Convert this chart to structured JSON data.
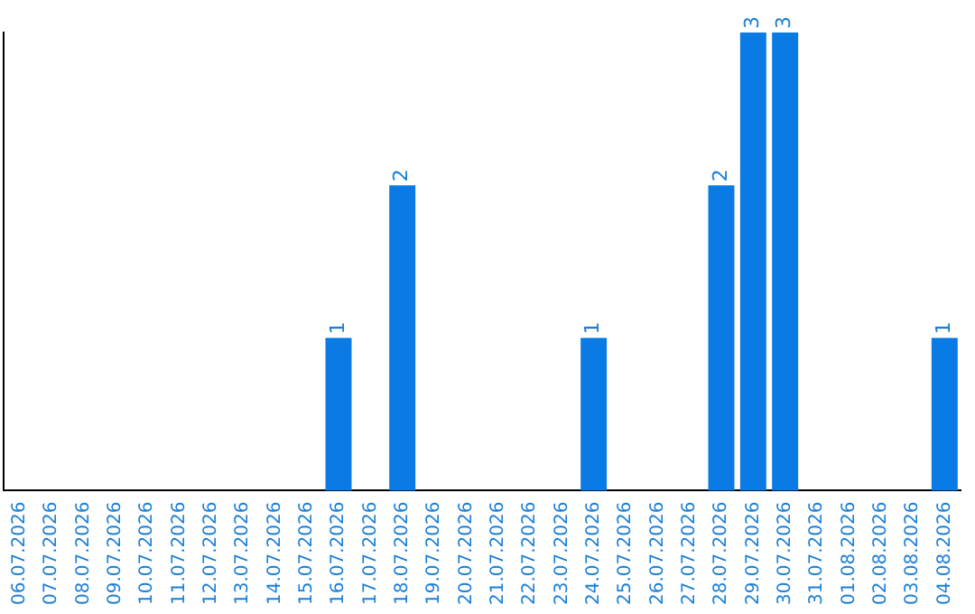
{
  "chart_data": {
    "type": "bar",
    "categories": [
      "06.07.2026",
      "07.07.2026",
      "08.07.2026",
      "09.07.2026",
      "10.07.2026",
      "11.07.2026",
      "12.07.2026",
      "13.07.2026",
      "14.07.2026",
      "15.07.2026",
      "16.07.2026",
      "17.07.2026",
      "18.07.2026",
      "19.07.2026",
      "20.07.2026",
      "21.07.2026",
      "22.07.2026",
      "23.07.2026",
      "24.07.2026",
      "25.07.2026",
      "26.07.2026",
      "27.07.2026",
      "28.07.2026",
      "29.07.2026",
      "30.07.2026",
      "31.07.2026",
      "01.08.2026",
      "02.08.2026",
      "03.08.2026",
      "04.08.2026"
    ],
    "values": [
      0,
      0,
      0,
      0,
      0,
      0,
      0,
      0,
      0,
      0,
      1,
      0,
      2,
      0,
      0,
      0,
      0,
      0,
      1,
      0,
      0,
      0,
      2,
      3,
      3,
      0,
      0,
      0,
      0,
      1
    ],
    "value_labels": [
      null,
      null,
      null,
      null,
      null,
      null,
      null,
      null,
      null,
      null,
      "1",
      null,
      "2",
      null,
      null,
      null,
      null,
      null,
      "1",
      null,
      null,
      null,
      "2",
      "3",
      "3",
      null,
      null,
      null,
      null,
      "1"
    ],
    "color": "#0a7be4",
    "ylim": [
      0,
      3
    ],
    "tick_labels": "x",
    "grid": false,
    "legend": false
  }
}
